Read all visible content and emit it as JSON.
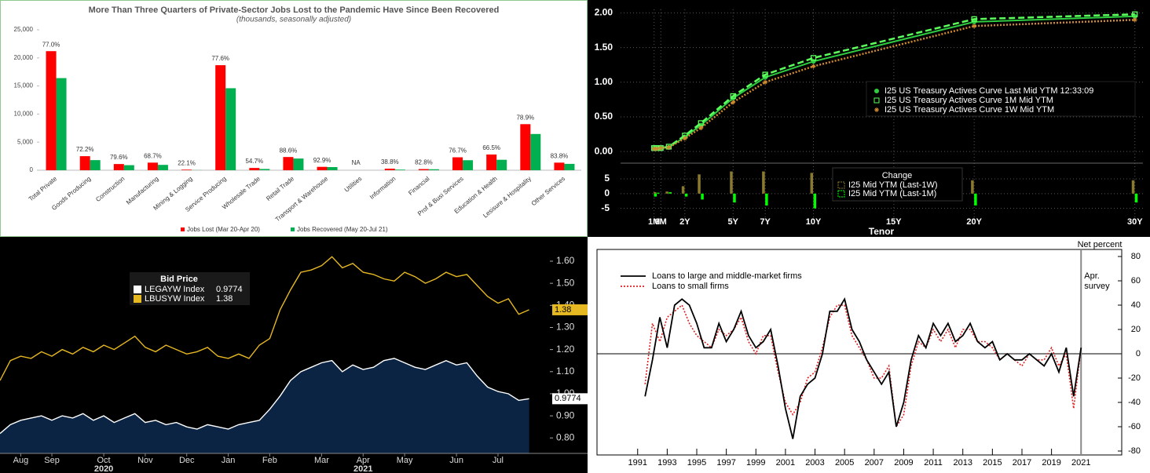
{
  "chart_data": [
    {
      "type": "bar",
      "title": "More Than Three Quarters of Private-Sector Jobs Lost to the Pandemic Have Since Been Recovered",
      "subtitle": "(thousands, seasonally adjusted)",
      "categories": [
        "Total Private",
        "Goods Producing",
        "Construction",
        "Manufacturing",
        "Mining & Logging",
        "Service Producing",
        "Wholesale Trade",
        "Retail Trade",
        "Transport & Warehouse",
        "Utilities",
        "Information",
        "Financial",
        "Prof & Busi Services",
        "Education & Health",
        "Lesisure & Hospitality",
        "Other Services"
      ],
      "series": [
        {
          "name": "Jobs Lost (Mar 20-Apr 20)",
          "color": "#ff0000",
          "values": [
            21200,
            2500,
            1100,
            1350,
            100,
            18700,
            400,
            2350,
            600,
            null,
            270,
            200,
            2300,
            2800,
            8200,
            1350
          ]
        },
        {
          "name": "Jobs Recovered (May 20-Jul 21)",
          "color": "#00b050",
          "values": [
            16400,
            1800,
            900,
            950,
            20,
            14600,
            220,
            2080,
            560,
            null,
            105,
            170,
            1780,
            1860,
            6450,
            1130
          ]
        }
      ],
      "annotations": [
        "77.0%",
        "72.2%",
        "79.6%",
        "68.7%",
        "22.1%",
        "77.6%",
        "54.7%",
        "88.6%",
        "92.9%",
        "NA",
        "38.8%",
        "82.8%",
        "76.7%",
        "66.5%",
        "78.9%",
        "83.8%"
      ],
      "ylim": [
        0,
        25000
      ],
      "yticks": [
        0,
        {
          "value": 5000,
          "label": "5,000"
        },
        {
          "value": 10000,
          "label": "10,000"
        },
        {
          "value": 15000,
          "label": "15,000"
        },
        {
          "value": 20000,
          "label": "20,000"
        },
        {
          "value": 25000,
          "label": "25,000"
        }
      ],
      "legend": "bottom"
    },
    {
      "type": "line",
      "x": [
        0.0833,
        0.25,
        0.5,
        1,
        2,
        3,
        5,
        7,
        10,
        20,
        30
      ],
      "series": [
        {
          "name": "I25 US Treasury Actives Curve Last Mid YTM 12:33:09",
          "color": "#2ecc40",
          "style": "solid",
          "marker": "circle",
          "values": [
            0.05,
            0.05,
            0.05,
            0.06,
            0.21,
            0.38,
            0.77,
            1.07,
            1.3,
            1.87,
            1.95
          ]
        },
        {
          "name": "I25 US Treasury Actives Curve 1M Mid YTM",
          "color": "#5cff5c",
          "style": "dashed",
          "marker": "square",
          "values": [
            0.05,
            0.05,
            0.05,
            0.07,
            0.23,
            0.41,
            0.8,
            1.11,
            1.35,
            1.91,
            1.98
          ]
        },
        {
          "name": "I25 US Treasury Actives Curve 1W Mid YTM",
          "color": "#d08a30",
          "style": "dotted",
          "marker": "star",
          "values": [
            0.04,
            0.04,
            0.05,
            0.06,
            0.19,
            0.34,
            0.71,
            1.0,
            1.23,
            1.81,
            1.9
          ]
        }
      ],
      "xlim": [
        -2,
        30.5
      ],
      "xticks": [
        {
          "value": 0.0833,
          "label": "1M"
        },
        {
          "value": 0.5,
          "label": "6M"
        },
        {
          "value": 2,
          "label": "2Y"
        },
        {
          "value": 5,
          "label": "5Y"
        },
        {
          "value": 7,
          "label": "7Y"
        },
        {
          "value": 10,
          "label": "10Y"
        },
        {
          "value": 15,
          "label": "15Y"
        },
        {
          "value": 20,
          "label": "20Y"
        },
        {
          "value": 30,
          "label": "30Y"
        }
      ],
      "xlabel": "Tenor",
      "ylim": [
        -0.1,
        2.05
      ],
      "yticks": [
        {
          "value": 0,
          "label": "0.00"
        },
        {
          "value": 0.5,
          "label": "0.50"
        },
        {
          "value": 1,
          "label": "1.00"
        },
        {
          "value": 1.5,
          "label": "1.50"
        },
        {
          "value": 2,
          "label": "2.00"
        }
      ],
      "grid": true,
      "change_panel": {
        "title": "Change",
        "series": [
          {
            "name": "I25 Mid YTM (Last-1W)",
            "color": "#8a7a30",
            "values": [
              0,
              0.5,
              0,
              0.7,
              2.5,
              6.5,
              7.5,
              7.5,
              7,
              4.5,
              4.5
            ]
          },
          {
            "name": "I25 Mid YTM (Last-1M)",
            "color": "#00ff00",
            "values": [
              -1,
              0.3,
              0,
              0.5,
              -1,
              -2,
              -3,
              -4,
              -5,
              -4,
              -3
            ]
          }
        ],
        "ylim": [
          -8,
          9.5
        ],
        "yticks": [
          -5,
          0,
          5
        ]
      }
    },
    {
      "type": "line",
      "legend_title": "Bid Price",
      "series": [
        {
          "name": "LEGAYW Index",
          "color": "#ffffff",
          "area": "#0c2444",
          "values": [
            0.82,
            0.86,
            0.88,
            0.89,
            0.9,
            0.88,
            0.9,
            0.89,
            0.91,
            0.88,
            0.9,
            0.87,
            0.89,
            0.91,
            0.87,
            0.88,
            0.86,
            0.87,
            0.85,
            0.84,
            0.86,
            0.85,
            0.84,
            0.86,
            0.87,
            0.88,
            0.93,
            0.99,
            1.06,
            1.1,
            1.12,
            1.14,
            1.15,
            1.1,
            1.13,
            1.11,
            1.12,
            1.15,
            1.16,
            1.14,
            1.12,
            1.11,
            1.13,
            1.15,
            1.13,
            1.14,
            1.08,
            1.03,
            1.01,
            1.0,
            0.97,
            0.9774
          ]
        },
        {
          "name": "LBUSYW Index",
          "color": "#e6b822",
          "values": [
            1.06,
            1.15,
            1.17,
            1.16,
            1.19,
            1.17,
            1.2,
            1.18,
            1.21,
            1.19,
            1.22,
            1.2,
            1.23,
            1.26,
            1.21,
            1.19,
            1.22,
            1.2,
            1.18,
            1.19,
            1.21,
            1.17,
            1.16,
            1.18,
            1.16,
            1.22,
            1.25,
            1.38,
            1.47,
            1.55,
            1.56,
            1.58,
            1.62,
            1.57,
            1.59,
            1.55,
            1.54,
            1.52,
            1.51,
            1.55,
            1.53,
            1.5,
            1.52,
            1.55,
            1.53,
            1.54,
            1.49,
            1.44,
            1.41,
            1.43,
            1.36,
            1.38
          ]
        }
      ],
      "xlim": [
        0,
        53
      ],
      "xticks": [
        {
          "value": 2,
          "label": "Aug"
        },
        {
          "value": 5,
          "label": "Sep"
        },
        {
          "value": 10,
          "label": "Oct"
        },
        {
          "value": 14,
          "label": "Nov"
        },
        {
          "value": 18,
          "label": "Dec"
        },
        {
          "value": 22,
          "label": "Jan"
        },
        {
          "value": 26,
          "label": "Feb"
        },
        {
          "value": 31,
          "label": "Mar"
        },
        {
          "value": 35,
          "label": "Apr"
        },
        {
          "value": 39,
          "label": "May"
        },
        {
          "value": 44,
          "label": "Jun"
        },
        {
          "value": 48,
          "label": "Jul"
        }
      ],
      "year_labels": [
        {
          "value": 10,
          "label": "2020"
        },
        {
          "value": 35,
          "label": "2021"
        }
      ],
      "ylim": [
        0.73,
        1.71
      ],
      "yticks": [
        {
          "value": 0.8,
          "label": "0.80"
        },
        {
          "value": 0.9,
          "label": "0.90"
        },
        {
          "value": 1.0,
          "label": "1.00"
        },
        {
          "value": 1.1,
          "label": "1.10"
        },
        {
          "value": 1.2,
          "label": "1.20"
        },
        {
          "value": 1.3,
          "label": "1.30"
        },
        {
          "value": 1.4,
          "label": "1.40"
        },
        {
          "value": 1.5,
          "label": "1.50"
        },
        {
          "value": 1.6,
          "label": "1.60"
        }
      ]
    },
    {
      "type": "line",
      "ylabel": "Net percent",
      "series": [
        {
          "name": "Loans to large and middle-market firms",
          "color": "#000000",
          "style": "solid",
          "values": [
            -35,
            -5,
            30,
            5,
            40,
            45,
            40,
            25,
            5,
            5,
            25,
            10,
            20,
            35,
            15,
            5,
            10,
            20,
            -10,
            -45,
            -70,
            -35,
            -25,
            -20,
            0,
            35,
            35,
            45,
            20,
            10,
            -5,
            -15,
            -25,
            -15,
            -60,
            -40,
            -5,
            15,
            5,
            25,
            15,
            25,
            10,
            15,
            25,
            10,
            5,
            10,
            -5,
            0,
            -5,
            -5,
            0,
            -5,
            -10,
            0,
            -15,
            5,
            -35,
            5
          ]
        },
        {
          "name": "Loans to small firms",
          "color": "#e02020",
          "style": "dotted",
          "values": [
            -25,
            25,
            10,
            30,
            35,
            40,
            25,
            15,
            10,
            5,
            20,
            15,
            20,
            30,
            10,
            0,
            15,
            15,
            -15,
            -40,
            -50,
            -40,
            -20,
            -15,
            5,
            30,
            40,
            40,
            15,
            5,
            -5,
            -20,
            -20,
            -10,
            -60,
            -50,
            -10,
            10,
            5,
            20,
            10,
            20,
            5,
            20,
            20,
            10,
            10,
            5,
            -5,
            0,
            -5,
            -10,
            0,
            -5,
            -5,
            5,
            -10,
            0,
            -45,
            5
          ]
        }
      ],
      "xlim": [
        -6.5,
        64.5
      ],
      "xticks": [
        {
          "value": -1,
          "label": "1991"
        },
        {
          "value": 3,
          "label": "1993"
        },
        {
          "value": 7,
          "label": "1995"
        },
        {
          "value": 11,
          "label": "1997"
        },
        {
          "value": 15,
          "label": "1999"
        },
        {
          "value": 19,
          "label": "2001"
        },
        {
          "value": 23,
          "label": "2003"
        },
        {
          "value": 27,
          "label": "2005"
        },
        {
          "value": 31,
          "label": "2007"
        },
        {
          "value": 35,
          "label": "2009"
        },
        {
          "value": 39,
          "label": "2011"
        },
        {
          "value": 43,
          "label": "2013"
        },
        {
          "value": 47,
          "label": "2015"
        },
        {
          "value": 51,
          "label": "2017"
        },
        {
          "value": 55,
          "label": "2019"
        },
        {
          "value": 59,
          "label": "2021"
        }
      ],
      "ylim": [
        -80,
        80
      ],
      "yticks": [
        -80,
        -60,
        -40,
        -20,
        0,
        20,
        40,
        60,
        80
      ],
      "vline": {
        "x": 59,
        "label": [
          "Apr.",
          "survey"
        ]
      }
    }
  ]
}
